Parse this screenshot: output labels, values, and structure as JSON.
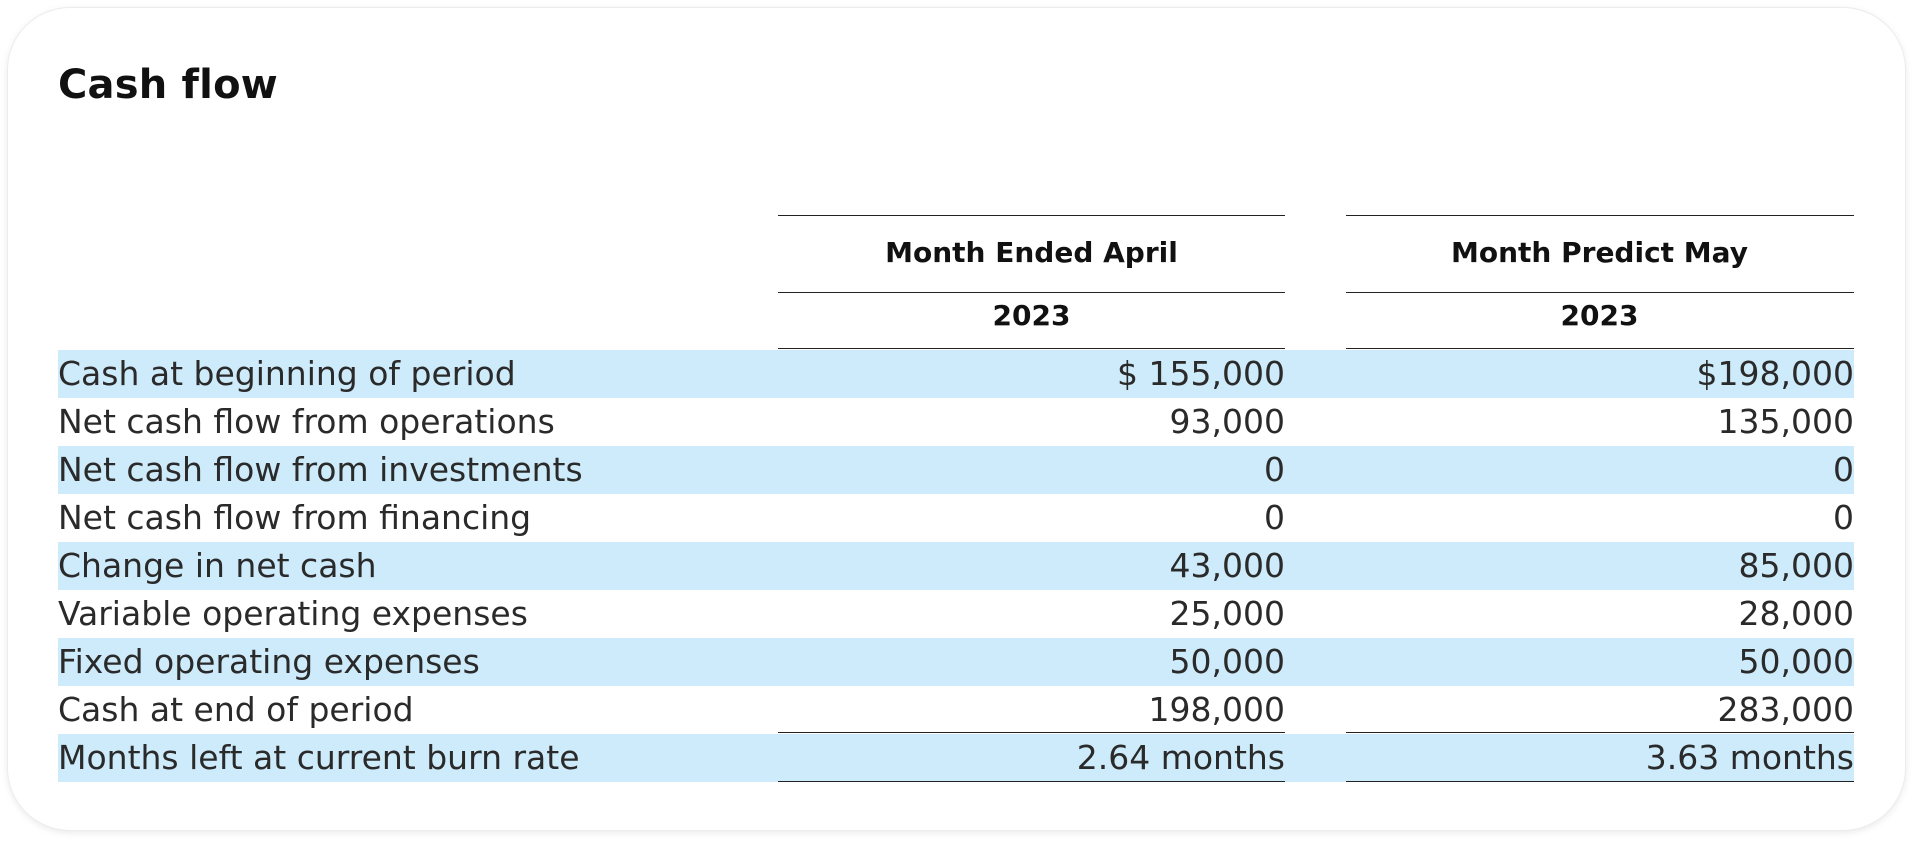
{
  "title": "Cash flow",
  "columns": [
    {
      "header": "Month Ended April",
      "year": "2023"
    },
    {
      "header": "Month Predict May",
      "year": "2023"
    }
  ],
  "rows": [
    {
      "label": "Cash at beginning of period",
      "v1": "$ 155,000",
      "v2": "$198,000"
    },
    {
      "label": "Net cash flow from operations",
      "v1": "93,000",
      "v2": "135,000"
    },
    {
      "label": "Net cash flow from investments",
      "v1": "0",
      "v2": "0"
    },
    {
      "label": "Net cash flow from financing",
      "v1": "0",
      "v2": "0"
    },
    {
      "label": "Change in net cash",
      "v1": "43,000",
      "v2": "85,000"
    },
    {
      "label": "Variable operating expenses",
      "v1": "25,000",
      "v2": "28,000"
    },
    {
      "label": "Fixed operating expenses",
      "v1": "50,000",
      "v2": "50,000"
    },
    {
      "label": "Cash at end of period",
      "v1": "198,000",
      "v2": "283,000"
    },
    {
      "label": "Months left at current burn rate",
      "v1": "2.64 months",
      "v2": "3.63 months"
    }
  ],
  "colors": {
    "row_shade": "#cdebfa",
    "text": "#2a2a2a",
    "rule": "#222222"
  }
}
